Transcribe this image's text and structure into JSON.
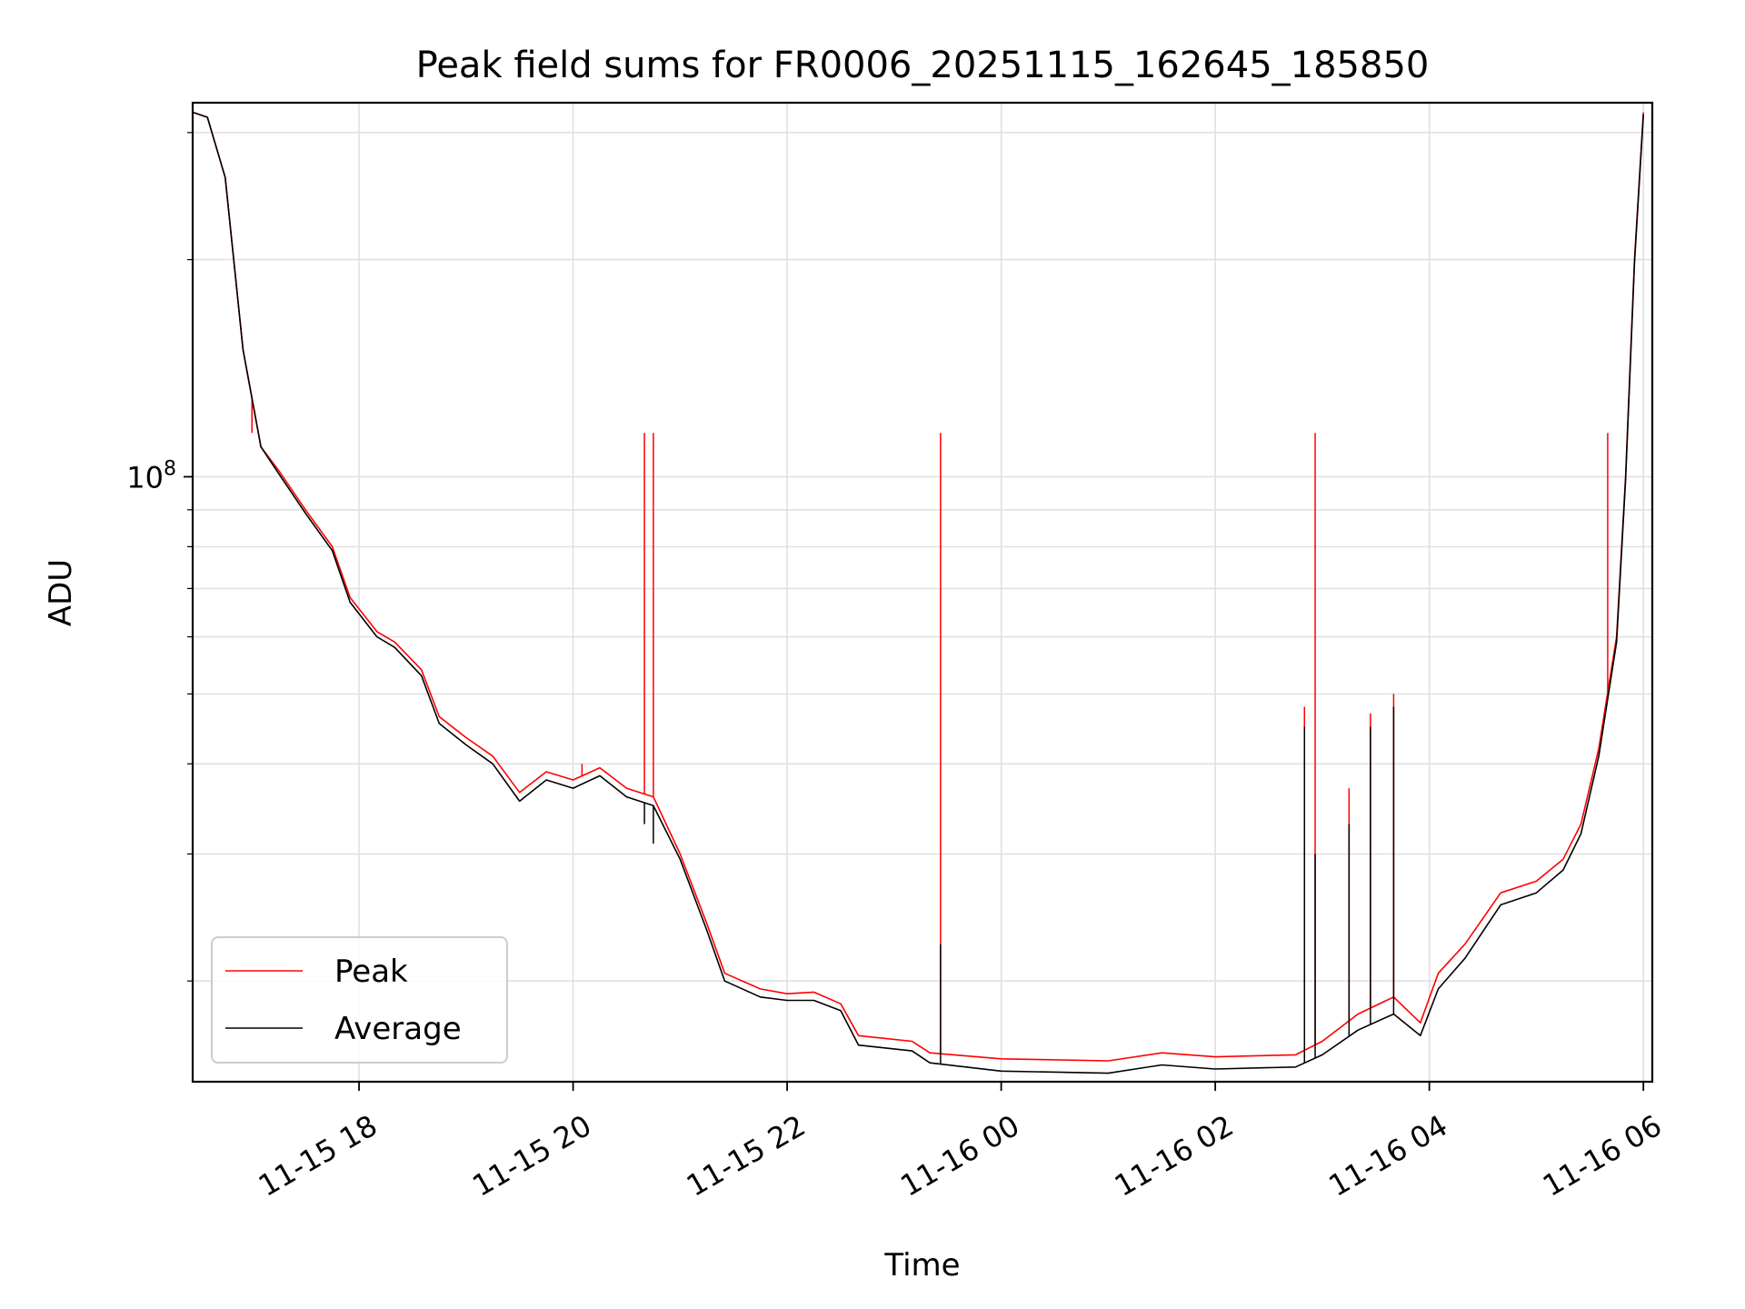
{
  "chart_data": {
    "type": "line",
    "title": "Peak field sums for FR0006_20251115_162645_185850",
    "xlabel": "Time",
    "ylabel": "ADU",
    "x_scale": "time",
    "y_scale": "log",
    "xlim": [
      "2025-11-15 16:26:45",
      "2025-11-16 06:05:00"
    ],
    "ylim": [
      14500000,
      330000000
    ],
    "grid": true,
    "legend_position": "lower-left",
    "x_ticks": [
      {
        "t": "2025-11-15 18:00",
        "label": "11-15 18"
      },
      {
        "t": "2025-11-15 20:00",
        "label": "11-15 20"
      },
      {
        "t": "2025-11-15 22:00",
        "label": "11-15 22"
      },
      {
        "t": "2025-11-16 00:00",
        "label": "11-16 00"
      },
      {
        "t": "2025-11-16 02:00",
        "label": "11-16 02"
      },
      {
        "t": "2025-11-16 04:00",
        "label": "11-16 04"
      },
      {
        "t": "2025-11-16 06:00",
        "label": "11-16 06"
      }
    ],
    "y_ticks": [
      {
        "value": 100000000,
        "base": "10",
        "exp": "8"
      }
    ],
    "series": [
      {
        "name": "Peak",
        "color": "#ff0000",
        "points": [
          [
            "2025-11-15 16:27",
            320000000
          ],
          [
            "2025-11-15 16:35",
            315000000
          ],
          [
            "2025-11-15 16:45",
            260000000
          ],
          [
            "2025-11-15 16:55",
            150000000
          ],
          [
            "2025-11-15 17:05",
            110000000
          ],
          [
            "2025-11-15 17:15",
            102000000
          ],
          [
            "2025-11-15 17:30",
            90000000
          ],
          [
            "2025-11-15 17:45",
            80000000
          ],
          [
            "2025-11-15 17:55",
            68000000
          ],
          [
            "2025-11-15 18:10",
            61000000
          ],
          [
            "2025-11-15 18:20",
            59000000
          ],
          [
            "2025-11-15 18:35",
            54000000
          ],
          [
            "2025-11-15 18:45",
            46500000
          ],
          [
            "2025-11-15 19:00",
            43500000
          ],
          [
            "2025-11-15 19:15",
            41000000
          ],
          [
            "2025-11-15 19:30",
            36500000
          ],
          [
            "2025-11-15 19:45",
            39000000
          ],
          [
            "2025-11-15 20:00",
            38000000
          ],
          [
            "2025-11-15 20:15",
            39500000
          ],
          [
            "2025-11-15 20:30",
            37000000
          ],
          [
            "2025-11-15 20:45",
            36000000
          ],
          [
            "2025-11-15 21:00",
            30000000
          ],
          [
            "2025-11-15 21:15",
            24000000
          ],
          [
            "2025-11-15 21:25",
            20500000
          ],
          [
            "2025-11-15 21:45",
            19500000
          ],
          [
            "2025-11-15 22:00",
            19200000
          ],
          [
            "2025-11-15 22:15",
            19300000
          ],
          [
            "2025-11-15 22:30",
            18600000
          ],
          [
            "2025-11-15 22:40",
            16800000
          ],
          [
            "2025-11-15 23:10",
            16500000
          ],
          [
            "2025-11-15 23:20",
            15900000
          ],
          [
            "2025-11-16 00:00",
            15600000
          ],
          [
            "2025-11-16 01:00",
            15500000
          ],
          [
            "2025-11-16 01:30",
            15900000
          ],
          [
            "2025-11-16 02:00",
            15700000
          ],
          [
            "2025-11-16 02:45",
            15800000
          ],
          [
            "2025-11-16 03:00",
            16500000
          ],
          [
            "2025-11-16 03:20",
            18000000
          ],
          [
            "2025-11-16 03:40",
            19000000
          ],
          [
            "2025-11-16 03:55",
            17500000
          ],
          [
            "2025-11-16 04:05",
            20500000
          ],
          [
            "2025-11-16 04:20",
            22500000
          ],
          [
            "2025-11-16 04:40",
            26500000
          ],
          [
            "2025-11-16 05:00",
            27500000
          ],
          [
            "2025-11-16 05:15",
            29500000
          ],
          [
            "2025-11-16 05:25",
            33000000
          ],
          [
            "2025-11-16 05:35",
            42000000
          ],
          [
            "2025-11-16 05:45",
            60000000
          ],
          [
            "2025-11-16 05:50",
            100000000
          ],
          [
            "2025-11-16 05:55",
            200000000
          ],
          [
            "2025-11-16 06:00",
            320000000
          ]
        ],
        "spikes": [
          {
            "t": "2025-11-15 17:00",
            "value": 115000000
          },
          {
            "t": "2025-11-15 20:05",
            "value": 40000000
          },
          {
            "t": "2025-11-15 20:40",
            "value": 115000000
          },
          {
            "t": "2025-11-15 20:45",
            "value": 115000000
          },
          {
            "t": "2025-11-15 23:26",
            "value": 115000000
          },
          {
            "t": "2025-11-16 02:50",
            "value": 48000000
          },
          {
            "t": "2025-11-16 02:56",
            "value": 115000000
          },
          {
            "t": "2025-11-16 03:15",
            "value": 37000000
          },
          {
            "t": "2025-11-16 03:27",
            "value": 47000000
          },
          {
            "t": "2025-11-16 03:40",
            "value": 50000000
          },
          {
            "t": "2025-11-16 05:40",
            "value": 115000000
          }
        ]
      },
      {
        "name": "Average",
        "color": "#000000",
        "points": [
          [
            "2025-11-15 16:27",
            320000000
          ],
          [
            "2025-11-15 16:35",
            315000000
          ],
          [
            "2025-11-15 16:45",
            260000000
          ],
          [
            "2025-11-15 16:55",
            150000000
          ],
          [
            "2025-11-15 17:05",
            110000000
          ],
          [
            "2025-11-15 17:15",
            101000000
          ],
          [
            "2025-11-15 17:30",
            89000000
          ],
          [
            "2025-11-15 17:45",
            79000000
          ],
          [
            "2025-11-15 17:55",
            67000000
          ],
          [
            "2025-11-15 18:10",
            60000000
          ],
          [
            "2025-11-15 18:20",
            58000000
          ],
          [
            "2025-11-15 18:35",
            53000000
          ],
          [
            "2025-11-15 18:45",
            45500000
          ],
          [
            "2025-11-15 19:00",
            42500000
          ],
          [
            "2025-11-15 19:15",
            40000000
          ],
          [
            "2025-11-15 19:30",
            35500000
          ],
          [
            "2025-11-15 19:45",
            38000000
          ],
          [
            "2025-11-15 20:00",
            37000000
          ],
          [
            "2025-11-15 20:15",
            38500000
          ],
          [
            "2025-11-15 20:30",
            36000000
          ],
          [
            "2025-11-15 20:45",
            35000000
          ],
          [
            "2025-11-15 21:00",
            29500000
          ],
          [
            "2025-11-15 21:15",
            23500000
          ],
          [
            "2025-11-15 21:25",
            20000000
          ],
          [
            "2025-11-15 21:45",
            19000000
          ],
          [
            "2025-11-15 22:00",
            18800000
          ],
          [
            "2025-11-15 22:15",
            18800000
          ],
          [
            "2025-11-15 22:30",
            18200000
          ],
          [
            "2025-11-15 22:40",
            16300000
          ],
          [
            "2025-11-15 23:10",
            16000000
          ],
          [
            "2025-11-15 23:20",
            15400000
          ],
          [
            "2025-11-16 00:00",
            15000000
          ],
          [
            "2025-11-16 01:00",
            14900000
          ],
          [
            "2025-11-16 01:30",
            15300000
          ],
          [
            "2025-11-16 02:00",
            15100000
          ],
          [
            "2025-11-16 02:45",
            15200000
          ],
          [
            "2025-11-16 03:00",
            15800000
          ],
          [
            "2025-11-16 03:20",
            17100000
          ],
          [
            "2025-11-16 03:40",
            18000000
          ],
          [
            "2025-11-16 03:55",
            16800000
          ],
          [
            "2025-11-16 04:05",
            19500000
          ],
          [
            "2025-11-16 04:20",
            21500000
          ],
          [
            "2025-11-16 04:40",
            25500000
          ],
          [
            "2025-11-16 05:00",
            26500000
          ],
          [
            "2025-11-16 05:15",
            28500000
          ],
          [
            "2025-11-16 05:25",
            32000000
          ],
          [
            "2025-11-16 05:35",
            41000000
          ],
          [
            "2025-11-16 05:45",
            59000000
          ],
          [
            "2025-11-16 05:50",
            99000000
          ],
          [
            "2025-11-16 05:55",
            198000000
          ],
          [
            "2025-11-16 06:00",
            318000000
          ]
        ],
        "spikes": [
          {
            "t": "2025-11-15 20:40",
            "value": 33000000
          },
          {
            "t": "2025-11-15 20:45",
            "value": 31000000
          },
          {
            "t": "2025-11-15 23:26",
            "value": 22500000
          },
          {
            "t": "2025-11-16 02:50",
            "value": 45000000
          },
          {
            "t": "2025-11-16 02:56",
            "value": 30000000
          },
          {
            "t": "2025-11-16 03:15",
            "value": 33000000
          },
          {
            "t": "2025-11-16 03:27",
            "value": 45000000
          },
          {
            "t": "2025-11-16 03:40",
            "value": 48000000
          }
        ]
      }
    ]
  }
}
